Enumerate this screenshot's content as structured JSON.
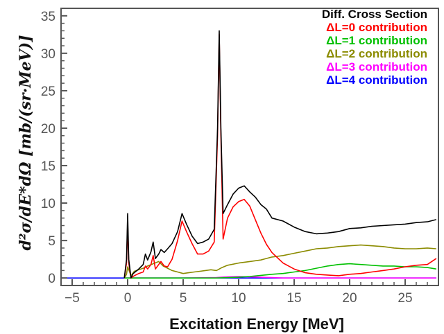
{
  "chart_data": {
    "type": "line",
    "title": "",
    "xlabel": "Excitation Energy [MeV]",
    "ylabel": "d²σ/dE*dΩ [mb/(sr·MeV)]",
    "xlim": [
      -6,
      28
    ],
    "ylim": [
      -1,
      36
    ],
    "x_ticks": [
      -5,
      0,
      5,
      10,
      15,
      20,
      25
    ],
    "y_ticks": [
      0,
      5,
      10,
      15,
      20,
      25,
      30,
      35
    ],
    "grid": false,
    "legend_position": "top-right",
    "series": [
      {
        "name": "Diff. Cross Section",
        "color": "#000000",
        "points": [
          [
            -0.3,
            0
          ],
          [
            -0.1,
            2.5
          ],
          [
            0,
            8.6
          ],
          [
            0.1,
            2.5
          ],
          [
            0.3,
            0
          ],
          [
            0.5,
            0.6
          ],
          [
            1,
            1.2
          ],
          [
            1.4,
            1.8
          ],
          [
            1.6,
            3.2
          ],
          [
            1.8,
            2.4
          ],
          [
            2.1,
            3.5
          ],
          [
            2.3,
            4.8
          ],
          [
            2.5,
            2.6
          ],
          [
            2.8,
            3.2
          ],
          [
            3.0,
            3.8
          ],
          [
            3.3,
            3.4
          ],
          [
            3.6,
            3.9
          ],
          [
            4.0,
            4.6
          ],
          [
            4.5,
            6.2
          ],
          [
            4.9,
            8.6
          ],
          [
            5.3,
            7.2
          ],
          [
            5.8,
            5.6
          ],
          [
            6.3,
            4.6
          ],
          [
            6.8,
            4.8
          ],
          [
            7.3,
            5.2
          ],
          [
            7.8,
            6.5
          ],
          [
            8.1,
            20
          ],
          [
            8.25,
            33
          ],
          [
            8.4,
            20
          ],
          [
            8.6,
            8.6
          ],
          [
            9.0,
            9.8
          ],
          [
            9.5,
            11.2
          ],
          [
            10.0,
            12.0
          ],
          [
            10.5,
            12.3
          ],
          [
            11.0,
            11.5
          ],
          [
            11.5,
            10.8
          ],
          [
            12.0,
            9.8
          ],
          [
            12.5,
            9.2
          ],
          [
            13.0,
            8.0
          ],
          [
            14.0,
            7.6
          ],
          [
            15.0,
            6.8
          ],
          [
            16.0,
            6.2
          ],
          [
            17.0,
            5.9
          ],
          [
            18.0,
            6.0
          ],
          [
            19.0,
            6.2
          ],
          [
            20.0,
            6.6
          ],
          [
            21.0,
            6.7
          ],
          [
            22.0,
            6.9
          ],
          [
            23.0,
            7.0
          ],
          [
            24.0,
            7.1
          ],
          [
            25.0,
            7.2
          ],
          [
            26.0,
            7.4
          ],
          [
            27.0,
            7.5
          ],
          [
            27.8,
            7.8
          ]
        ]
      },
      {
        "name": "ΔL=0 contribution",
        "color": "#ff0000",
        "points": [
          [
            -0.3,
            0
          ],
          [
            -0.1,
            2
          ],
          [
            0,
            7.3
          ],
          [
            0.1,
            2
          ],
          [
            0.3,
            0
          ],
          [
            0.6,
            0.3
          ],
          [
            1.0,
            0.6
          ],
          [
            1.4,
            0.8
          ],
          [
            1.6,
            1.6
          ],
          [
            1.8,
            1.2
          ],
          [
            2.1,
            1.8
          ],
          [
            2.3,
            3.0
          ],
          [
            2.5,
            1.2
          ],
          [
            2.8,
            1.8
          ],
          [
            3.0,
            2.2
          ],
          [
            3.3,
            1.6
          ],
          [
            3.6,
            1.5
          ],
          [
            4.0,
            2.5
          ],
          [
            4.5,
            5.0
          ],
          [
            4.9,
            7.6
          ],
          [
            5.3,
            6.2
          ],
          [
            5.8,
            4.6
          ],
          [
            6.3,
            3.2
          ],
          [
            6.8,
            3.2
          ],
          [
            7.3,
            3.6
          ],
          [
            7.8,
            4.8
          ],
          [
            8.1,
            19
          ],
          [
            8.25,
            32.5
          ],
          [
            8.4,
            19
          ],
          [
            8.6,
            5.2
          ],
          [
            9.0,
            8.0
          ],
          [
            9.5,
            9.5
          ],
          [
            10.0,
            10.2
          ],
          [
            10.5,
            10.5
          ],
          [
            11.0,
            9.6
          ],
          [
            11.5,
            7.8
          ],
          [
            12.0,
            6.0
          ],
          [
            12.5,
            4.5
          ],
          [
            13.0,
            3.4
          ],
          [
            14.0,
            2.0
          ],
          [
            15.0,
            1.2
          ],
          [
            16.0,
            0.7
          ],
          [
            17.0,
            0.5
          ],
          [
            18.0,
            0.4
          ],
          [
            19.0,
            0.3
          ],
          [
            20.0,
            0.5
          ],
          [
            21.0,
            0.6
          ],
          [
            22.0,
            0.8
          ],
          [
            23.0,
            1.0
          ],
          [
            24.0,
            1.2
          ],
          [
            25.0,
            1.5
          ],
          [
            26.0,
            1.7
          ],
          [
            27.0,
            1.8
          ],
          [
            27.8,
            2.6
          ]
        ]
      },
      {
        "name": "ΔL=1 contribution",
        "color": "#00c000",
        "points": [
          [
            -0.3,
            0
          ],
          [
            5,
            0
          ],
          [
            8,
            0
          ],
          [
            10,
            0.1
          ],
          [
            11,
            0.2
          ],
          [
            12,
            0.35
          ],
          [
            13,
            0.5
          ],
          [
            14,
            0.6
          ],
          [
            15,
            0.8
          ],
          [
            16,
            1.0
          ],
          [
            17,
            1.3
          ],
          [
            18,
            1.6
          ],
          [
            19,
            1.8
          ],
          [
            20,
            1.9
          ],
          [
            21,
            1.8
          ],
          [
            22,
            1.7
          ],
          [
            23,
            1.6
          ],
          [
            24,
            1.6
          ],
          [
            25,
            1.5
          ],
          [
            26,
            1.5
          ],
          [
            27,
            1.4
          ],
          [
            27.8,
            1.2
          ]
        ]
      },
      {
        "name": "ΔL=2 contribution",
        "color": "#8b8b00",
        "points": [
          [
            -0.3,
            0
          ],
          [
            -0.1,
            0.5
          ],
          [
            0,
            1.5
          ],
          [
            0.3,
            0.3
          ],
          [
            0.6,
            0.9
          ],
          [
            1.0,
            1.1
          ],
          [
            1.4,
            1.3
          ],
          [
            1.8,
            1.6
          ],
          [
            2.3,
            1.9
          ],
          [
            2.8,
            2.2
          ],
          [
            3.2,
            1.6
          ],
          [
            3.6,
            1.3
          ],
          [
            4.0,
            1.0
          ],
          [
            4.5,
            0.8
          ],
          [
            5.0,
            0.6
          ],
          [
            5.5,
            0.7
          ],
          [
            6.0,
            0.8
          ],
          [
            6.5,
            0.9
          ],
          [
            7.0,
            1.0
          ],
          [
            7.5,
            1.1
          ],
          [
            8.0,
            1.0
          ],
          [
            8.5,
            1.4
          ],
          [
            9.0,
            1.7
          ],
          [
            10.0,
            2.0
          ],
          [
            11.0,
            2.2
          ],
          [
            12.0,
            2.4
          ],
          [
            13.0,
            2.8
          ],
          [
            14.0,
            3.0
          ],
          [
            15.0,
            3.3
          ],
          [
            16.0,
            3.6
          ],
          [
            17.0,
            3.9
          ],
          [
            18.0,
            4.0
          ],
          [
            19.0,
            4.2
          ],
          [
            20.0,
            4.3
          ],
          [
            21.0,
            4.4
          ],
          [
            22.0,
            4.3
          ],
          [
            23.0,
            4.2
          ],
          [
            24.0,
            4.0
          ],
          [
            25.0,
            3.9
          ],
          [
            26.0,
            3.9
          ],
          [
            27.0,
            4.0
          ],
          [
            27.8,
            3.9
          ]
        ]
      },
      {
        "name": "ΔL=3 contribution",
        "color": "#ff00ff",
        "points": [
          [
            -0.3,
            0
          ],
          [
            5,
            0
          ],
          [
            8,
            0.05
          ],
          [
            9,
            0.15
          ],
          [
            10,
            0.2
          ],
          [
            11,
            0.15
          ],
          [
            12,
            0.1
          ],
          [
            13,
            0.05
          ],
          [
            14,
            0
          ],
          [
            27.8,
            0
          ]
        ]
      },
      {
        "name": "ΔL=4 contribution",
        "color": "#0000ff",
        "points": [
          [
            -6,
            0
          ],
          [
            27.8,
            0
          ]
        ]
      }
    ]
  }
}
